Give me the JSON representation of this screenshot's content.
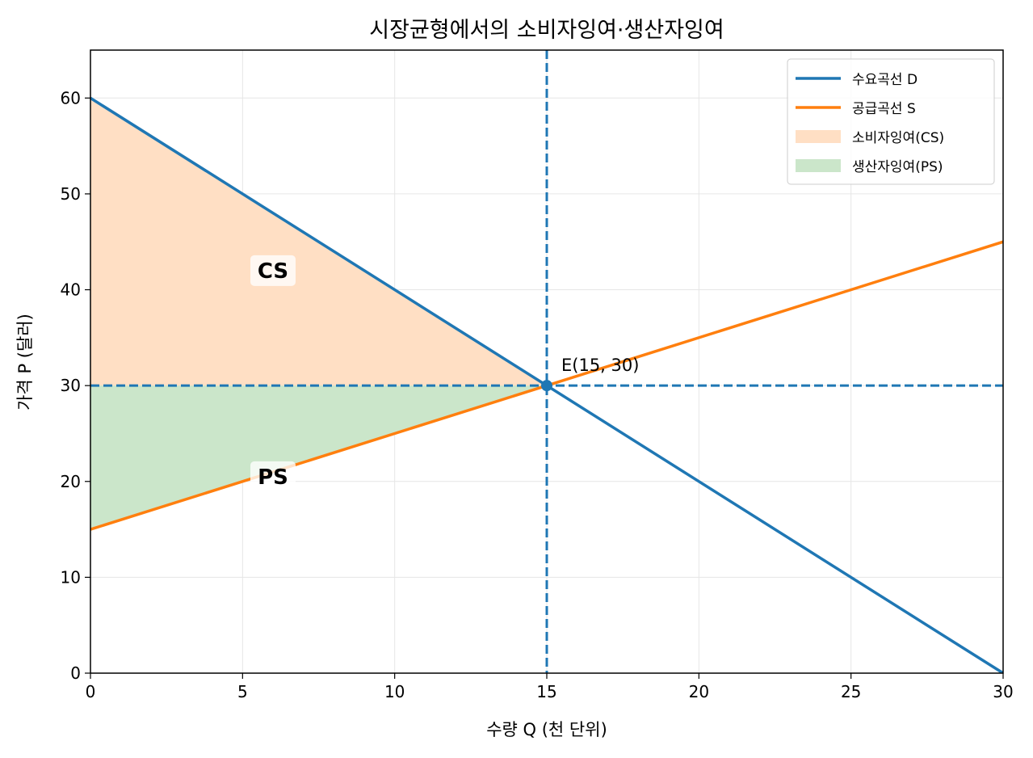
{
  "chart_data": {
    "type": "line",
    "title": "시장균형에서의 소비자잉여·생산자잉여",
    "xlabel": "수량 Q (천 단위)",
    "ylabel": "가격 P (달러)",
    "xlim": [
      0,
      30
    ],
    "ylim": [
      0,
      65
    ],
    "xticks": [
      0,
      5,
      10,
      15,
      20,
      25,
      30
    ],
    "yticks": [
      0,
      10,
      20,
      30,
      40,
      50,
      60
    ],
    "grid": true,
    "legend_position": "top-right",
    "series": [
      {
        "name": "수요곡선 D",
        "x": [
          0,
          30
        ],
        "y": [
          60,
          0
        ],
        "color": "#1f77b4"
      },
      {
        "name": "공급곡선 S",
        "x": [
          0,
          30
        ],
        "y": [
          15,
          45
        ],
        "color": "#ff7f0e"
      }
    ],
    "areas": [
      {
        "name": "소비자잉여(CS)",
        "label": "CS",
        "polygon": [
          [
            0,
            60
          ],
          [
            15,
            30
          ],
          [
            0,
            30
          ]
        ],
        "color": "#ffdfc4",
        "label_at": [
          6,
          42
        ]
      },
      {
        "name": "생산자잉여(PS)",
        "label": "PS",
        "polygon": [
          [
            0,
            30
          ],
          [
            15,
            30
          ],
          [
            0,
            15
          ]
        ],
        "color": "#cbe6ca",
        "label_at": [
          6,
          20.5
        ]
      }
    ],
    "equilibrium": {
      "x": 15,
      "y": 30,
      "label": "E(15, 30)"
    },
    "reference_lines": {
      "color": "#1f77b4",
      "style": "dashed",
      "x": 15,
      "y": 30
    }
  }
}
